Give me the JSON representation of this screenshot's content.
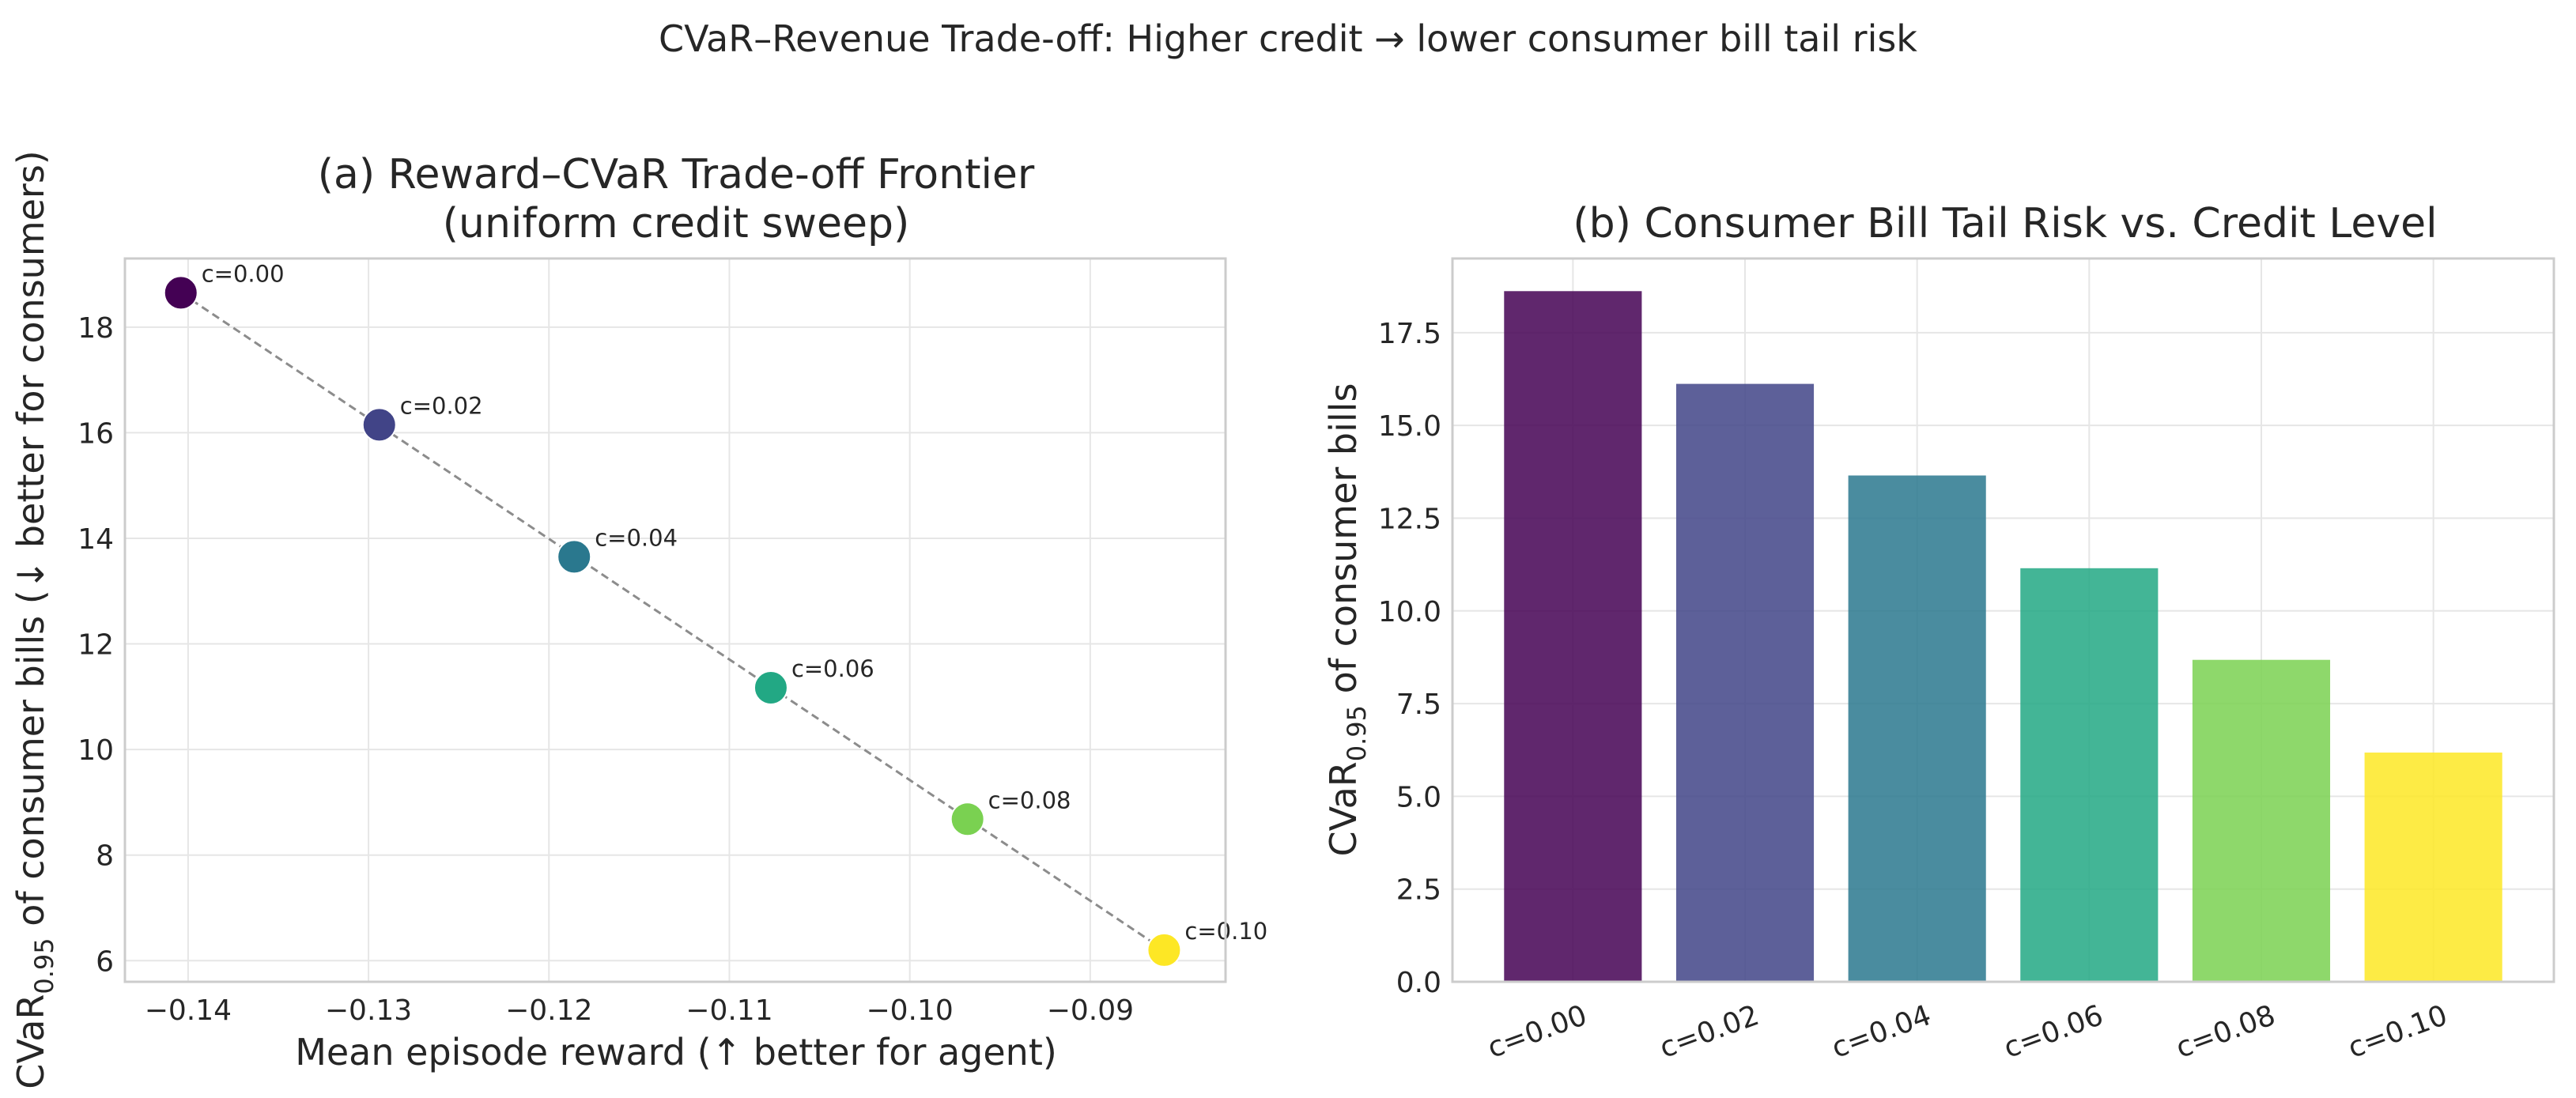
{
  "suptitle": "CVaR–Revenue Trade-off: Higher credit → lower consumer bill tail risk",
  "chart_data": [
    {
      "type": "scatter",
      "title_line1": "(a) Reward–CVaR Trade-off Frontier",
      "title_line2": "(uniform credit sweep)",
      "xlabel": "Mean episode reward (↑ better for agent)",
      "ylabel": {
        "prefix": "CVaR",
        "sub": "0.95",
        "suffix": " of consumer bills (↓ better for consumers)"
      },
      "xlim": [
        -0.1435,
        -0.0825
      ],
      "ylim": [
        5.6,
        19.3
      ],
      "xticks": [
        -0.14,
        -0.13,
        -0.12,
        -0.11,
        -0.1,
        -0.09
      ],
      "xtick_labels": [
        "−0.14",
        "−0.13",
        "−0.12",
        "−0.11",
        "−0.10",
        "−0.09"
      ],
      "yticks": [
        6,
        8,
        10,
        12,
        14,
        16,
        18
      ],
      "ytick_labels": [
        "6",
        "8",
        "10",
        "12",
        "14",
        "16",
        "18"
      ],
      "grid": true,
      "connector": "dashed gray line",
      "points": [
        {
          "label": "c=0.00",
          "x": -0.1404,
          "y": 18.65,
          "color": "#440154"
        },
        {
          "label": "c=0.02",
          "x": -0.1294,
          "y": 16.15,
          "color": "#414487"
        },
        {
          "label": "c=0.04",
          "x": -0.1186,
          "y": 13.65,
          "color": "#2a788e"
        },
        {
          "label": "c=0.06",
          "x": -0.1077,
          "y": 11.17,
          "color": "#22a884"
        },
        {
          "label": "c=0.08",
          "x": -0.0968,
          "y": 8.68,
          "color": "#7ad151"
        },
        {
          "label": "c=0.10",
          "x": -0.0859,
          "y": 6.2,
          "color": "#fde725"
        }
      ]
    },
    {
      "type": "bar",
      "title": "(b) Consumer Bill Tail Risk vs. Credit Level",
      "xlabel": "",
      "ylabel": {
        "prefix": "CVaR",
        "sub": "0.95",
        "suffix": " of consumer bills"
      },
      "ylim": [
        0,
        19.5
      ],
      "yticks": [
        0,
        2.5,
        5,
        7.5,
        10,
        12.5,
        15,
        17.5
      ],
      "ytick_labels": [
        "0.0",
        "2.5",
        "5.0",
        "7.5",
        "10.0",
        "12.5",
        "15.0",
        "17.5"
      ],
      "grid": true,
      "categories": [
        "c=0.00",
        "c=0.02",
        "c=0.04",
        "c=0.06",
        "c=0.08",
        "c=0.10"
      ],
      "values": [
        18.62,
        16.12,
        13.65,
        11.15,
        8.68,
        6.18
      ],
      "colors": [
        "#440154",
        "#414487",
        "#2a788e",
        "#22a884",
        "#7ad151",
        "#fde725"
      ]
    }
  ]
}
